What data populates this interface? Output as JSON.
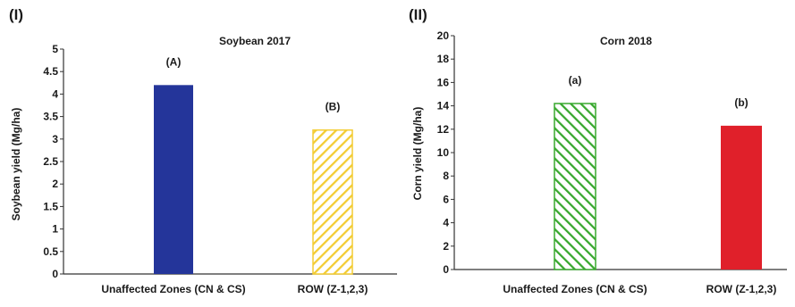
{
  "chart_data": [
    {
      "panel_label": "(I)",
      "type": "bar",
      "title": "Soybean 2017",
      "ylabel": "Soybean yield (Mg/ha)",
      "xlabel": "",
      "ylim": [
        0,
        5
      ],
      "yticks": [
        "0",
        "0.5",
        "1",
        "1.5",
        "2",
        "2.5",
        "3",
        "3.5",
        "4",
        "4.5",
        "5"
      ],
      "categories": [
        "Unaffected Zones (CN & CS)",
        "ROW (Z-1,2,3)"
      ],
      "values": [
        4.2,
        3.2
      ],
      "bar_labels": [
        "(A)",
        "(B)"
      ],
      "bar_colors": [
        "#24359a",
        "#f3cc33"
      ],
      "bar_styles": [
        "solid",
        "hatched"
      ],
      "grid": false
    },
    {
      "panel_label": "(II)",
      "type": "bar",
      "title": "Corn 2018",
      "ylabel": "Corn yield (Mg/ha)",
      "xlabel": "",
      "ylim": [
        0,
        20
      ],
      "yticks": [
        "0",
        "2",
        "4",
        "6",
        "8",
        "10",
        "12",
        "14",
        "16",
        "18",
        "20"
      ],
      "categories": [
        "Unaffected Zones (CN & CS)",
        "ROW (Z-1,2,3)"
      ],
      "values": [
        14.2,
        12.3
      ],
      "bar_labels": [
        "(a)",
        "(b)"
      ],
      "bar_colors": [
        "#38a82e",
        "#e0202a"
      ],
      "bar_styles": [
        "hatched",
        "solid"
      ],
      "grid": false
    }
  ]
}
